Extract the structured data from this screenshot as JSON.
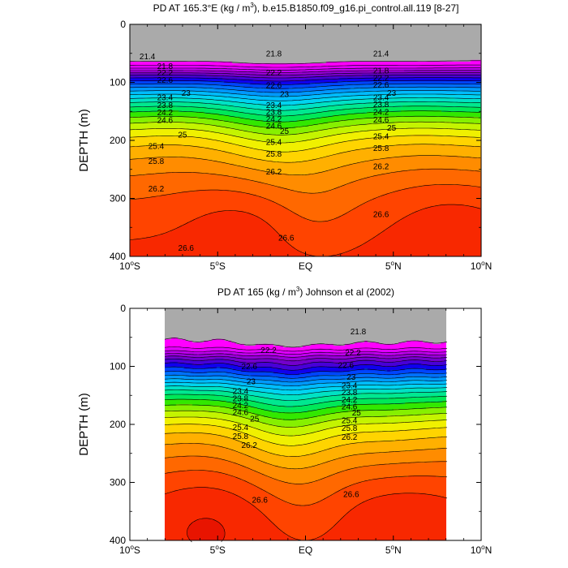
{
  "chart_data": [
    {
      "type": "contour",
      "title_main": "PD AT 165.3°E (kg / m",
      "title_sup": "3",
      "title_tail": "), b.e15.B1850.f09_g16.pi_control.all.119 [8-27]",
      "ylabel": "DEPTH (m)",
      "xlim": [
        -10,
        10
      ],
      "ylim": [
        0,
        400
      ],
      "x_ticks": [
        {
          "value": -10,
          "label": "10",
          "sup": "o",
          "suffix": "S"
        },
        {
          "value": -5,
          "label": "5",
          "sup": "o",
          "suffix": "S"
        },
        {
          "value": 0,
          "label": "EQ",
          "sup": "",
          "suffix": ""
        },
        {
          "value": 5,
          "label": "5",
          "sup": "o",
          "suffix": "N"
        },
        {
          "value": 10,
          "label": "10",
          "sup": "o",
          "suffix": "N"
        }
      ],
      "y_ticks": [
        0,
        100,
        200,
        300,
        400
      ],
      "data_xlim": [
        -10,
        10
      ],
      "contour_levels": [
        21.4,
        21.6,
        21.8,
        22.0,
        22.2,
        22.4,
        22.6,
        22.8,
        23.0,
        23.2,
        23.4,
        23.6,
        23.8,
        24.0,
        24.2,
        24.4,
        24.6,
        24.8,
        25.0,
        25.2,
        25.4,
        25.6,
        25.8,
        26.0,
        26.2,
        26.4,
        26.6
      ],
      "contour_labels": [
        {
          "text": "21.4",
          "x": -9.0,
          "y": 55
        },
        {
          "text": "21.8",
          "x": -8.0,
          "y": 72
        },
        {
          "text": "22.2",
          "x": -8.0,
          "y": 83
        },
        {
          "text": "22.6",
          "x": -8.0,
          "y": 96
        },
        {
          "text": "23",
          "x": -6.8,
          "y": 118
        },
        {
          "text": "23.4",
          "x": -8.0,
          "y": 126
        },
        {
          "text": "23.8",
          "x": -8.0,
          "y": 139
        },
        {
          "text": "24.2",
          "x": -8.0,
          "y": 152
        },
        {
          "text": "24.6",
          "x": -8.0,
          "y": 165
        },
        {
          "text": "25",
          "x": -7.0,
          "y": 190
        },
        {
          "text": "25.4",
          "x": -8.5,
          "y": 210
        },
        {
          "text": "25.8",
          "x": -8.5,
          "y": 236
        },
        {
          "text": "26.2",
          "x": -8.5,
          "y": 283
        },
        {
          "text": "26.6",
          "x": -6.8,
          "y": 385
        },
        {
          "text": "21.8",
          "x": -1.8,
          "y": 50
        },
        {
          "text": "22.2",
          "x": -1.8,
          "y": 83
        },
        {
          "text": "22.6",
          "x": -1.8,
          "y": 105
        },
        {
          "text": "23",
          "x": -1.2,
          "y": 120
        },
        {
          "text": "23.4",
          "x": -1.8,
          "y": 139
        },
        {
          "text": "23.8",
          "x": -1.8,
          "y": 151
        },
        {
          "text": "24.2",
          "x": -1.8,
          "y": 163
        },
        {
          "text": "24.6",
          "x": -1.8,
          "y": 175
        },
        {
          "text": "25",
          "x": -1.2,
          "y": 184
        },
        {
          "text": "25.4",
          "x": -1.8,
          "y": 203
        },
        {
          "text": "25.8",
          "x": -1.8,
          "y": 223
        },
        {
          "text": "26.2",
          "x": -1.8,
          "y": 254
        },
        {
          "text": "26.6",
          "x": -1.1,
          "y": 368
        },
        {
          "text": "21.4",
          "x": 4.3,
          "y": 50
        },
        {
          "text": "21.8",
          "x": 4.3,
          "y": 80
        },
        {
          "text": "22.2",
          "x": 4.3,
          "y": 92
        },
        {
          "text": "22.6",
          "x": 4.3,
          "y": 104
        },
        {
          "text": "23",
          "x": 4.9,
          "y": 118
        },
        {
          "text": "23.4",
          "x": 4.3,
          "y": 126
        },
        {
          "text": "23.8",
          "x": 4.3,
          "y": 138
        },
        {
          "text": "24.2",
          "x": 4.3,
          "y": 151
        },
        {
          "text": "24.6",
          "x": 4.3,
          "y": 164
        },
        {
          "text": "25",
          "x": 4.9,
          "y": 178
        },
        {
          "text": "25.4",
          "x": 4.3,
          "y": 193
        },
        {
          "text": "25.8",
          "x": 4.3,
          "y": 213
        },
        {
          "text": "26.2",
          "x": 4.3,
          "y": 245
        },
        {
          "text": "26.6",
          "x": 4.3,
          "y": 327
        }
      ]
    },
    {
      "type": "contour",
      "title_main": "PD AT 165 (kg / m",
      "title_sup": "3",
      "title_tail": ") Johnson et al (2002)",
      "ylabel": "DEPTH (m)",
      "xlim": [
        -10,
        10
      ],
      "ylim": [
        0,
        400
      ],
      "x_ticks": [
        {
          "value": -10,
          "label": "10",
          "sup": "o",
          "suffix": "S"
        },
        {
          "value": -5,
          "label": "5",
          "sup": "o",
          "suffix": "S"
        },
        {
          "value": 0,
          "label": "EQ",
          "sup": "",
          "suffix": ""
        },
        {
          "value": 5,
          "label": "5",
          "sup": "o",
          "suffix": "N"
        },
        {
          "value": 10,
          "label": "10",
          "sup": "o",
          "suffix": "N"
        }
      ],
      "y_ticks": [
        0,
        100,
        200,
        300,
        400
      ],
      "data_xlim": [
        -8,
        8
      ],
      "contour_levels": [
        21.4,
        21.6,
        21.8,
        22.0,
        22.2,
        22.4,
        22.6,
        22.8,
        23.0,
        23.2,
        23.4,
        23.6,
        23.8,
        24.0,
        24.2,
        24.4,
        24.6,
        24.8,
        25.0,
        25.2,
        25.4,
        25.6,
        25.8,
        26.0,
        26.2,
        26.4,
        26.6
      ],
      "contour_labels": [
        {
          "text": "21.8",
          "x": 3.0,
          "y": 40
        },
        {
          "text": "22.2",
          "x": -2.1,
          "y": 72
        },
        {
          "text": "22.6",
          "x": -3.2,
          "y": 100
        },
        {
          "text": "23",
          "x": -3.1,
          "y": 126
        },
        {
          "text": "23.4",
          "x": -3.7,
          "y": 143
        },
        {
          "text": "23.8",
          "x": -3.7,
          "y": 155
        },
        {
          "text": "24.2",
          "x": -3.7,
          "y": 167
        },
        {
          "text": "24.6",
          "x": -3.7,
          "y": 179
        },
        {
          "text": "25",
          "x": -2.9,
          "y": 190
        },
        {
          "text": "25.4",
          "x": -3.7,
          "y": 205
        },
        {
          "text": "25.8",
          "x": -3.7,
          "y": 220
        },
        {
          "text": "26.2",
          "x": -3.2,
          "y": 236
        },
        {
          "text": "26.6",
          "x": -2.6,
          "y": 330
        },
        {
          "text": "22.2",
          "x": 2.7,
          "y": 76
        },
        {
          "text": "22.6",
          "x": 2.3,
          "y": 98
        },
        {
          "text": "23",
          "x": 2.6,
          "y": 118
        },
        {
          "text": "23.4",
          "x": 2.5,
          "y": 133
        },
        {
          "text": "23.8",
          "x": 2.5,
          "y": 145
        },
        {
          "text": "24.2",
          "x": 2.5,
          "y": 157
        },
        {
          "text": "24.6",
          "x": 2.5,
          "y": 169
        },
        {
          "text": "25",
          "x": 2.9,
          "y": 180
        },
        {
          "text": "25.4",
          "x": 2.5,
          "y": 193
        },
        {
          "text": "25.8",
          "x": 2.5,
          "y": 206
        },
        {
          "text": "26.2",
          "x": 2.5,
          "y": 222
        },
        {
          "text": "26.6",
          "x": 2.6,
          "y": 320
        }
      ]
    }
  ]
}
